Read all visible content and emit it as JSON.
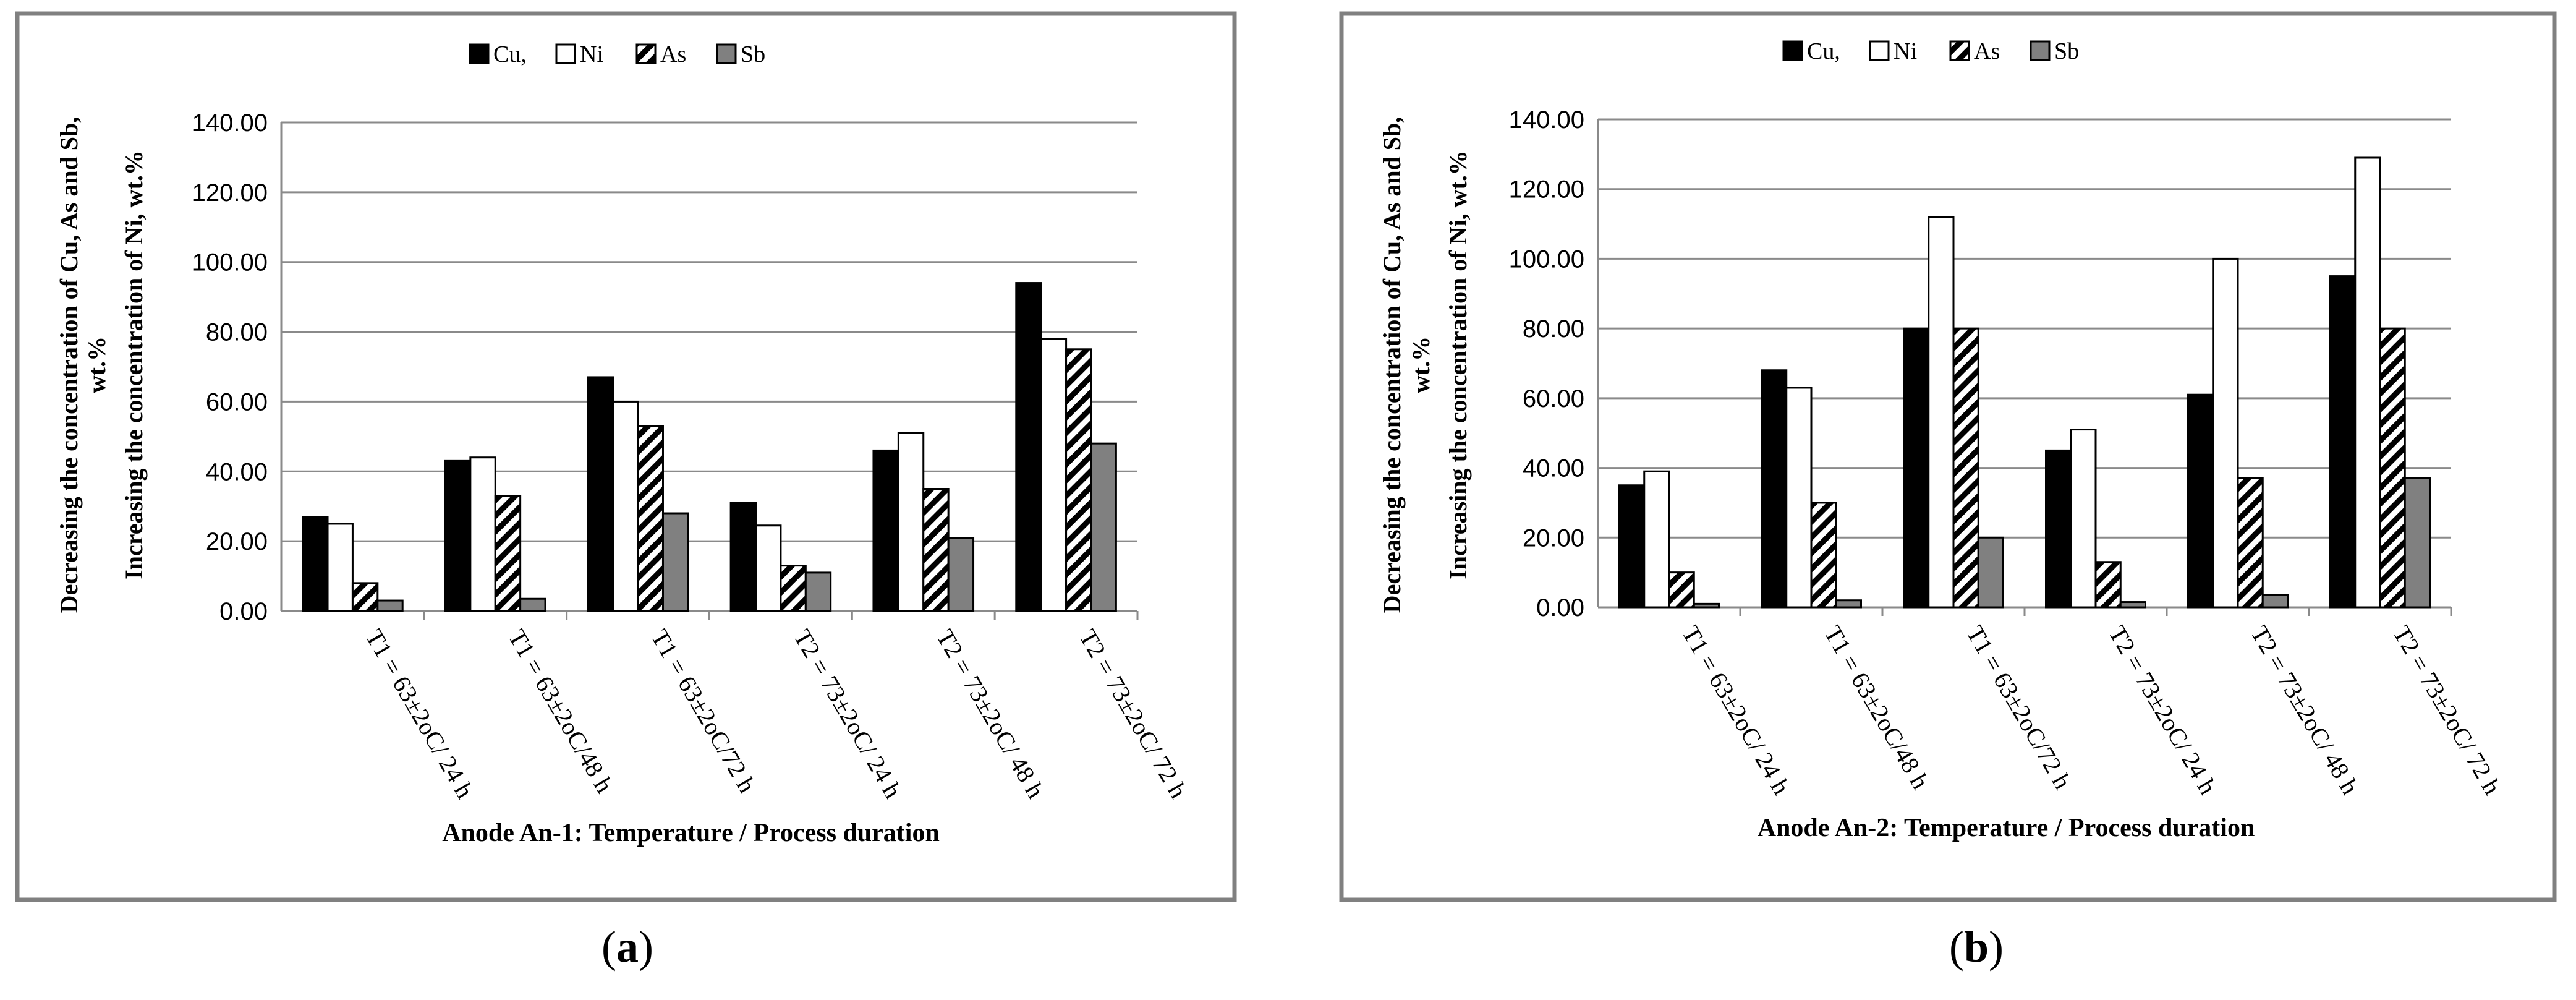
{
  "chart_data": [
    {
      "type": "bar",
      "panel_label": "a",
      "xlabel": "Anode An-1: Temperature / Process duration",
      "ylabel_lines": [
        "Decreasing the concentration of Cu, As and Sb,",
        "wt.%",
        "Increasing the concentration of Ni, wt.%"
      ],
      "ylim": [
        0,
        140
      ],
      "yticks": [
        "0.00",
        "20.00",
        "40.00",
        "60.00",
        "80.00",
        "100.00",
        "120.00",
        "140.00"
      ],
      "grid": true,
      "legend_position": "top-center",
      "categories": [
        "T1 = 63±2oC/ 24 h",
        "T1 = 63±2oC/48 h",
        "T1 = 63±2oC/72 h",
        "T2 = 73±2oC/ 24 h",
        "T2 = 73±2oC/ 48 h",
        "T2 = 73±2oC/ 72 h"
      ],
      "series": [
        {
          "name": "Cu,",
          "values": [
            27,
            43,
            67,
            31,
            46,
            94
          ]
        },
        {
          "name": "Ni",
          "values": [
            25,
            44,
            60,
            24.5,
            51,
            78
          ]
        },
        {
          "name": "As",
          "values": [
            8,
            33,
            53,
            13,
            35,
            75
          ]
        },
        {
          "name": "Sb",
          "values": [
            3,
            3.5,
            28,
            11,
            21,
            48
          ]
        }
      ]
    },
    {
      "type": "bar",
      "panel_label": "b",
      "xlabel": "Anode An-2: Temperature / Process duration",
      "ylabel_lines": [
        "Decreasing the concentration of Cu, As and Sb,",
        "wt.%",
        "Increasing the concentration of Ni, wt.%"
      ],
      "ylim": [
        0,
        140
      ],
      "yticks": [
        "0.00",
        "20.00",
        "40.00",
        "60.00",
        "80.00",
        "100.00",
        "120.00",
        "140.00"
      ],
      "grid": true,
      "legend_position": "top-center",
      "categories": [
        "T1 = 63±2oC/ 24 h",
        "T1 = 63±2oC/48 h",
        "T1 = 63±2oC/72 h",
        "T2 = 73±2oC/ 24 h",
        "T2 = 73±2oC/ 48 h",
        "T2 = 73±2oC/ 72 h"
      ],
      "series": [
        {
          "name": "Cu,",
          "values": [
            35,
            68,
            80,
            45,
            61,
            95
          ]
        },
        {
          "name": "Ni",
          "values": [
            39,
            63,
            112,
            51,
            100,
            129
          ]
        },
        {
          "name": "As",
          "values": [
            10,
            30,
            80,
            13,
            37,
            80
          ]
        },
        {
          "name": "Sb",
          "values": [
            1,
            2,
            20,
            1.5,
            3.5,
            37
          ]
        }
      ]
    }
  ],
  "series_styles": {
    "Cu,": {
      "fill": "#000000"
    },
    "Ni": {
      "fill": "#ffffff"
    },
    "As": {
      "fill": "hatch"
    },
    "Sb": {
      "fill": "#808080"
    }
  },
  "labels": {
    "a": "a",
    "b": "b"
  }
}
